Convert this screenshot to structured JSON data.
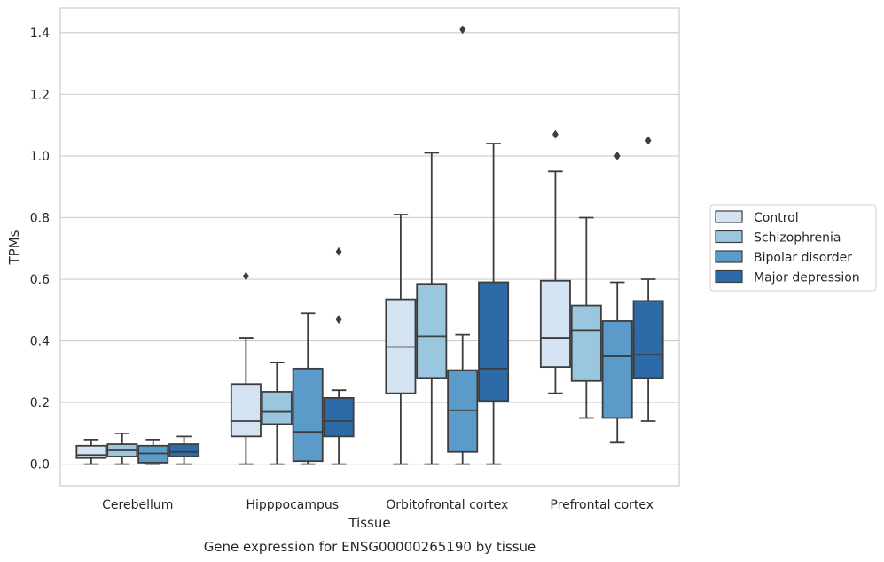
{
  "caption": "Gene expression for ENSG00000265190 by tissue",
  "chart_data": {
    "type": "box",
    "xlabel": "Tissue",
    "ylabel": "TPMs",
    "ylim": [
      -0.07,
      1.48
    ],
    "yticks": [
      0.0,
      0.2,
      0.4,
      0.6,
      0.8,
      1.0,
      1.2,
      1.4
    ],
    "ytick_labels": [
      "0.0",
      "0.2",
      "0.4",
      "0.6",
      "0.8",
      "1.0",
      "1.2",
      "1.4"
    ],
    "grid": "horizontal",
    "legend_position": "right",
    "categories": [
      "Cerebellum",
      "Hipppocampus",
      "Orbitofrontal cortex",
      "Prefrontal cortex"
    ],
    "series": [
      {
        "name": "Control",
        "color": "#d4e3f2",
        "boxes": [
          {
            "whisker_low": 0.0,
            "q1": 0.02,
            "median": 0.03,
            "q3": 0.06,
            "whisker_high": 0.08,
            "outliers": []
          },
          {
            "whisker_low": 0.0,
            "q1": 0.09,
            "median": 0.14,
            "q3": 0.26,
            "whisker_high": 0.41,
            "outliers": [
              0.61
            ]
          },
          {
            "whisker_low": 0.0,
            "q1": 0.23,
            "median": 0.38,
            "q3": 0.535,
            "whisker_high": 0.81,
            "outliers": []
          },
          {
            "whisker_low": 0.23,
            "q1": 0.315,
            "median": 0.41,
            "q3": 0.595,
            "whisker_high": 0.95,
            "outliers": [
              1.07
            ]
          }
        ]
      },
      {
        "name": "Schizophrenia",
        "color": "#9bc6e0",
        "boxes": [
          {
            "whisker_low": 0.0,
            "q1": 0.025,
            "median": 0.045,
            "q3": 0.065,
            "whisker_high": 0.1,
            "outliers": []
          },
          {
            "whisker_low": 0.0,
            "q1": 0.13,
            "median": 0.17,
            "q3": 0.235,
            "whisker_high": 0.33,
            "outliers": []
          },
          {
            "whisker_low": 0.0,
            "q1": 0.28,
            "median": 0.415,
            "q3": 0.585,
            "whisker_high": 1.01,
            "outliers": []
          },
          {
            "whisker_low": 0.15,
            "q1": 0.27,
            "median": 0.435,
            "q3": 0.515,
            "whisker_high": 0.8,
            "outliers": []
          }
        ]
      },
      {
        "name": "Bipolar disorder",
        "color": "#5b9bc9",
        "boxes": [
          {
            "whisker_low": 0.0,
            "q1": 0.005,
            "median": 0.035,
            "q3": 0.06,
            "whisker_high": 0.08,
            "outliers": []
          },
          {
            "whisker_low": 0.0,
            "q1": 0.01,
            "median": 0.105,
            "q3": 0.31,
            "whisker_high": 0.49,
            "outliers": []
          },
          {
            "whisker_low": 0.0,
            "q1": 0.04,
            "median": 0.175,
            "q3": 0.305,
            "whisker_high": 0.42,
            "outliers": [
              1.41
            ]
          },
          {
            "whisker_low": 0.07,
            "q1": 0.15,
            "median": 0.35,
            "q3": 0.465,
            "whisker_high": 0.59,
            "outliers": [
              1.0
            ]
          }
        ]
      },
      {
        "name": "Major depression",
        "color": "#2c6aa8",
        "boxes": [
          {
            "whisker_low": 0.0,
            "q1": 0.025,
            "median": 0.04,
            "q3": 0.065,
            "whisker_high": 0.09,
            "outliers": []
          },
          {
            "whisker_low": 0.0,
            "q1": 0.09,
            "median": 0.14,
            "q3": 0.215,
            "whisker_high": 0.24,
            "outliers": [
              0.47,
              0.69
            ]
          },
          {
            "whisker_low": 0.0,
            "q1": 0.205,
            "median": 0.31,
            "q3": 0.59,
            "whisker_high": 1.04,
            "outliers": []
          },
          {
            "whisker_low": 0.14,
            "q1": 0.28,
            "median": 0.355,
            "q3": 0.53,
            "whisker_high": 0.6,
            "outliers": [
              1.05
            ]
          }
        ]
      }
    ]
  }
}
